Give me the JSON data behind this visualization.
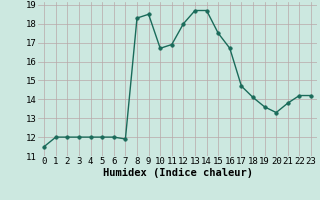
{
  "x": [
    0,
    1,
    2,
    3,
    4,
    5,
    6,
    7,
    8,
    9,
    10,
    11,
    12,
    13,
    14,
    15,
    16,
    17,
    18,
    19,
    20,
    21,
    22,
    23
  ],
  "y": [
    11.5,
    12.0,
    12.0,
    12.0,
    12.0,
    12.0,
    12.0,
    11.9,
    18.3,
    18.5,
    16.7,
    16.9,
    18.0,
    18.7,
    18.7,
    17.5,
    16.7,
    14.7,
    14.1,
    13.6,
    13.3,
    13.8,
    14.2,
    14.2
  ],
  "xlabel": "Humidex (Indice chaleur)",
  "ylim": [
    11,
    19
  ],
  "xlim": [
    -0.5,
    23.5
  ],
  "yticks": [
    11,
    12,
    13,
    14,
    15,
    16,
    17,
    18,
    19
  ],
  "xticks": [
    0,
    1,
    2,
    3,
    4,
    5,
    6,
    7,
    8,
    9,
    10,
    11,
    12,
    13,
    14,
    15,
    16,
    17,
    18,
    19,
    20,
    21,
    22,
    23
  ],
  "xtick_labels": [
    "0",
    "1",
    "2",
    "3",
    "4",
    "5",
    "6",
    "7",
    "8",
    "9",
    "10",
    "11",
    "12",
    "13",
    "14",
    "15",
    "16",
    "17",
    "18",
    "19",
    "20",
    "21",
    "22",
    "23"
  ],
  "ytick_labels": [
    "11",
    "12",
    "13",
    "14",
    "15",
    "16",
    "17",
    "18",
    "19"
  ],
  "line_color": "#1a6b5a",
  "marker_size": 2.5,
  "line_width": 1.0,
  "bg_color": "#cce8e0",
  "grid_color_major": "#b8a8a8",
  "grid_color_minor": "#d8c8c8",
  "tick_fontsize": 6.5,
  "xlabel_fontsize": 7.5
}
